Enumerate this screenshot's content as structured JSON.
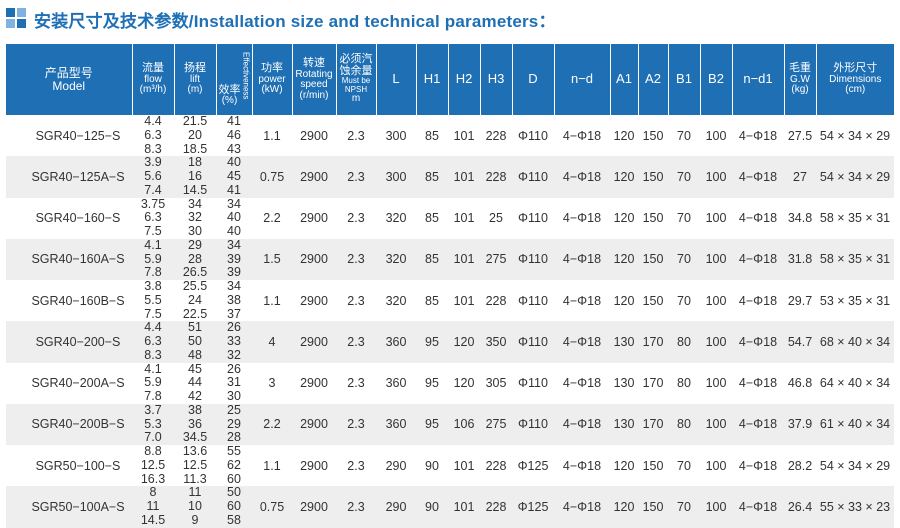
{
  "title": "安装尺寸及技术参数/Installation size and technical parameters：",
  "header": {
    "model_cn": "产品型号",
    "model_en": "Model",
    "flow_cn": "流量",
    "flow_en": "flow",
    "flow_unit": "(m³/h)",
    "lift_cn": "扬程",
    "lift_en": "lift",
    "lift_unit": "(m)",
    "eff_cn": "效率",
    "eff_unit": "(%)",
    "eff_en": "Effectiveness",
    "power_cn": "功率",
    "power_en": "power",
    "power_unit": "(kW)",
    "speed_cn": "转速",
    "speed_en1": "Rotating",
    "speed_en2": "speed",
    "speed_unit": "(r/min)",
    "npsh_cn1": "必须汽",
    "npsh_cn2": "蚀余量",
    "npsh_en1": "Must be",
    "npsh_en2": "NPSH",
    "npsh_unit": "m",
    "L": "L",
    "H1": "H1",
    "H2": "H2",
    "H3": "H3",
    "D": "D",
    "nd": "n−d",
    "A1": "A1",
    "A2": "A2",
    "B1": "B1",
    "B2": "B2",
    "nd1": "n−d1",
    "gw_cn": "毛重",
    "gw_en": "G.W",
    "gw_unit": "(kg)",
    "dim_cn": "外形尺寸",
    "dim_en": "Dimensions",
    "dim_unit": "(cm)"
  },
  "rows": [
    {
      "model": "SGR40−125−S",
      "flow": [
        "4.4",
        "6.3",
        "8.3"
      ],
      "lift": [
        "21.5",
        "20",
        "18.5"
      ],
      "eff": [
        "41",
        "46",
        "43"
      ],
      "power": "1.1",
      "speed": "2900",
      "npsh": "2.3",
      "L": "300",
      "H1": "85",
      "H2": "101",
      "H3": "228",
      "D": "Φ110",
      "nd": "4−Φ18",
      "A1": "120",
      "A2": "150",
      "B1": "70",
      "B2": "100",
      "nd1": "4−Φ18",
      "gw": "27.5",
      "dim": "54 × 34 × 29"
    },
    {
      "model": "SGR40−125A−S",
      "flow": [
        "3.9",
        "5.6",
        "7.4"
      ],
      "lift": [
        "18",
        "16",
        "14.5"
      ],
      "eff": [
        "40",
        "45",
        "41"
      ],
      "power": "0.75",
      "speed": "2900",
      "npsh": "2.3",
      "L": "300",
      "H1": "85",
      "H2": "101",
      "H3": "228",
      "D": "Φ110",
      "nd": "4−Φ18",
      "A1": "120",
      "A2": "150",
      "B1": "70",
      "B2": "100",
      "nd1": "4−Φ18",
      "gw": "27",
      "dim": "54 × 34 × 29"
    },
    {
      "model": "SGR40−160−S",
      "flow": [
        "3.75",
        "6.3",
        "7.5"
      ],
      "lift": [
        "34",
        "32",
        "30"
      ],
      "eff": [
        "34",
        "40",
        "40"
      ],
      "power": "2.2",
      "speed": "2900",
      "npsh": "2.3",
      "L": "320",
      "H1": "85",
      "H2": "101",
      "H3": "25",
      "D": "Φ110",
      "nd": "4−Φ18",
      "A1": "120",
      "A2": "150",
      "B1": "70",
      "B2": "100",
      "nd1": "4−Φ18",
      "gw": "34.8",
      "dim": "58 × 35 × 31"
    },
    {
      "model": "SGR40−160A−S",
      "flow": [
        "4.1",
        "5.9",
        "7.8"
      ],
      "lift": [
        "29",
        "28",
        "26.5"
      ],
      "eff": [
        "34",
        "39",
        "39"
      ],
      "power": "1.5",
      "speed": "2900",
      "npsh": "2.3",
      "L": "320",
      "H1": "85",
      "H2": "101",
      "H3": "275",
      "D": "Φ110",
      "nd": "4−Φ18",
      "A1": "120",
      "A2": "150",
      "B1": "70",
      "B2": "100",
      "nd1": "4−Φ18",
      "gw": "31.8",
      "dim": "58 × 35 × 31"
    },
    {
      "model": "SGR40−160B−S",
      "flow": [
        "3.8",
        "5.5",
        "7.5"
      ],
      "lift": [
        "25.5",
        "24",
        "22.5"
      ],
      "eff": [
        "34",
        "38",
        "37"
      ],
      "power": "1.1",
      "speed": "2900",
      "npsh": "2.3",
      "L": "320",
      "H1": "85",
      "H2": "101",
      "H3": "228",
      "D": "Φ110",
      "nd": "4−Φ18",
      "A1": "120",
      "A2": "150",
      "B1": "70",
      "B2": "100",
      "nd1": "4−Φ18",
      "gw": "29.7",
      "dim": "53 × 35 × 31"
    },
    {
      "model": "SGR40−200−S",
      "flow": [
        "4.4",
        "6.3",
        "8.3"
      ],
      "lift": [
        "51",
        "50",
        "48"
      ],
      "eff": [
        "26",
        "33",
        "32"
      ],
      "power": "4",
      "speed": "2900",
      "npsh": "2.3",
      "L": "360",
      "H1": "95",
      "H2": "120",
      "H3": "350",
      "D": "Φ110",
      "nd": "4−Φ18",
      "A1": "130",
      "A2": "170",
      "B1": "80",
      "B2": "100",
      "nd1": "4−Φ18",
      "gw": "54.7",
      "dim": "68 × 40 × 34"
    },
    {
      "model": "SGR40−200A−S",
      "flow": [
        "4.1",
        "5.9",
        "7.8"
      ],
      "lift": [
        "45",
        "44",
        "42"
      ],
      "eff": [
        "26",
        "31",
        "30"
      ],
      "power": "3",
      "speed": "2900",
      "npsh": "2.3",
      "L": "360",
      "H1": "95",
      "H2": "120",
      "H3": "305",
      "D": "Φ110",
      "nd": "4−Φ18",
      "A1": "130",
      "A2": "170",
      "B1": "80",
      "B2": "100",
      "nd1": "4−Φ18",
      "gw": "46.8",
      "dim": "64 × 40 × 34"
    },
    {
      "model": "SGR40−200B−S",
      "flow": [
        "3.7",
        "5.3",
        "7.0"
      ],
      "lift": [
        "38",
        "36",
        "34.5"
      ],
      "eff": [
        "25",
        "29",
        "28"
      ],
      "power": "2.2",
      "speed": "2900",
      "npsh": "2.3",
      "L": "360",
      "H1": "95",
      "H2": "106",
      "H3": "275",
      "D": "Φ110",
      "nd": "4−Φ18",
      "A1": "130",
      "A2": "170",
      "B1": "80",
      "B2": "100",
      "nd1": "4−Φ18",
      "gw": "37.9",
      "dim": "61 × 40 × 34"
    },
    {
      "model": "SGR50−100−S",
      "flow": [
        "8.8",
        "12.5",
        "16.3"
      ],
      "lift": [
        "13.6",
        "12.5",
        "11.3"
      ],
      "eff": [
        "55",
        "62",
        "60"
      ],
      "power": "1.1",
      "speed": "2900",
      "npsh": "2.3",
      "L": "290",
      "H1": "90",
      "H2": "101",
      "H3": "228",
      "D": "Φ125",
      "nd": "4−Φ18",
      "A1": "120",
      "A2": "150",
      "B1": "70",
      "B2": "100",
      "nd1": "4−Φ18",
      "gw": "28.2",
      "dim": "54 × 34 × 29"
    },
    {
      "model": "SGR50−100A−S",
      "flow": [
        "8",
        "11",
        "14.5"
      ],
      "lift": [
        "11",
        "10",
        "9"
      ],
      "eff": [
        "50",
        "60",
        "58"
      ],
      "power": "0.75",
      "speed": "2900",
      "npsh": "2.3",
      "L": "290",
      "H1": "90",
      "H2": "101",
      "H3": "228",
      "D": "Φ125",
      "nd": "4−Φ18",
      "A1": "120",
      "A2": "150",
      "B1": "70",
      "B2": "100",
      "nd1": "4−Φ18",
      "gw": "26.4",
      "dim": "55 × 33 × 23"
    }
  ],
  "colors": {
    "accent": "#1f6fb5",
    "row_alt": "#eeeeee"
  }
}
